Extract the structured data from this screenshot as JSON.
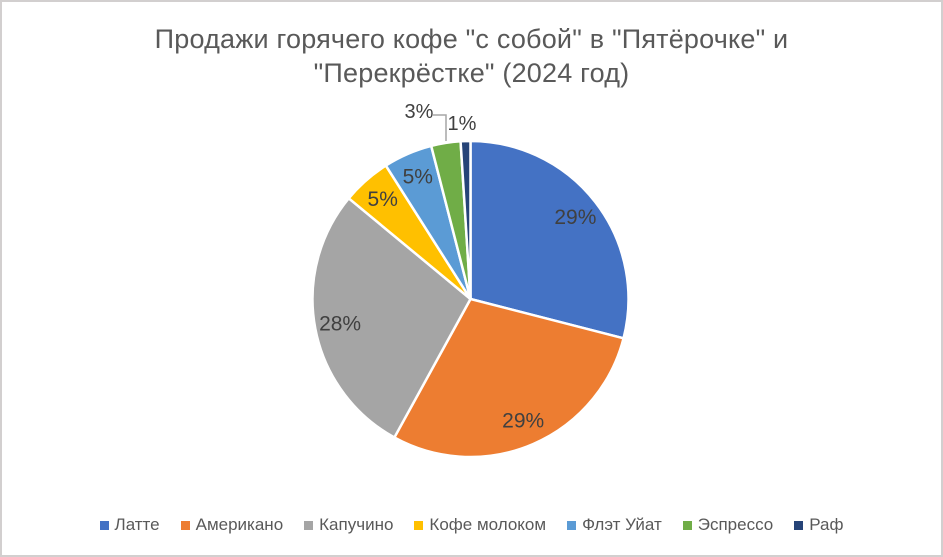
{
  "window": {
    "background": "#ffffff",
    "border_color": "#d2cfcf"
  },
  "title": {
    "text": "Продажи горячего кофе \"с собой\" в \"Пятёрочке\" и \"Перекрёстке\" (2024 год)",
    "lines": [
      "Продажи горячего кофе \"с собой\" в \"Пятёрочке\" и",
      "\"Перекрёстке\" (2024 год)"
    ],
    "color": "#595959"
  },
  "chart_data": {
    "type": "pie",
    "title": "Продажи горячего кофе \"с собой\" в \"Пятёрочке\" и \"Перекрёстке\" (2024 год)",
    "categories": [
      "Латте",
      "Американо",
      "Капучино",
      "Кофе молоком",
      "Флэт Уйат",
      "Эспрессо",
      "Раф"
    ],
    "values": [
      29,
      29,
      28,
      5,
      5,
      3,
      1
    ],
    "value_unit": "percent",
    "labels": [
      "29%",
      "29%",
      "28%",
      "5%",
      "5%",
      "3%",
      "1%"
    ],
    "label_placement": [
      "inside",
      "inside",
      "inside",
      "inside",
      "inside",
      "outside",
      "outside"
    ],
    "colors": [
      "#4472c4",
      "#ed7d31",
      "#a5a5a5",
      "#ffc000",
      "#5b9bd5",
      "#70ad47",
      "#264478"
    ],
    "start_angle_deg": 0,
    "direction": "clockwise",
    "slice_border_color": "#ffffff",
    "data_label_color": "#404040",
    "leader_line_color": "#a6a6a6",
    "legend_position": "bottom",
    "legend_text_color": "#595959"
  }
}
